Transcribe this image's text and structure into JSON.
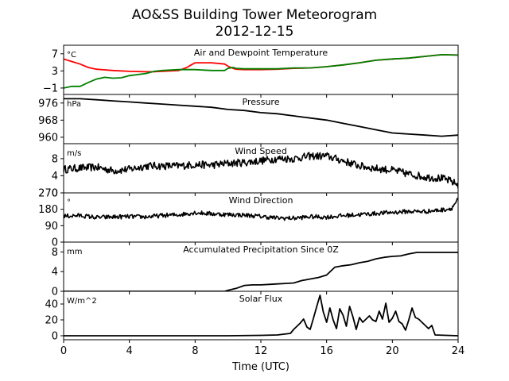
{
  "title": "AO&SS Building Tower Meteorogram",
  "subtitle": "2012-12-15",
  "xlabel": "Time (UTC)",
  "xticks": [
    0,
    4,
    8,
    12,
    16,
    20,
    24
  ],
  "xlim": [
    0,
    24
  ],
  "chart_data": [
    {
      "type": "line",
      "title": "Air and Dewpoint Temperature",
      "unit": "°C",
      "ylim": [
        -2.5,
        9
      ],
      "yticks": [
        -1,
        3,
        7
      ],
      "series": [
        {
          "color": "#ff0000",
          "x": [
            0,
            0.5,
            1,
            1.5,
            2,
            3,
            4,
            5,
            5.5,
            6,
            7,
            7.5,
            7.8,
            8,
            9,
            9.8,
            10,
            10.3,
            10.5,
            11,
            12,
            13,
            14,
            15,
            16,
            17,
            18,
            19,
            20,
            21,
            22,
            23,
            24
          ],
          "y": [
            5.8,
            5.2,
            4.6,
            3.8,
            3.4,
            3.1,
            2.9,
            2.8,
            2.8,
            2.9,
            3.1,
            3.8,
            4.5,
            4.9,
            4.9,
            4.6,
            4.1,
            3.6,
            3.4,
            3.3,
            3.3,
            3.4,
            3.6,
            3.7,
            4.0,
            4.4,
            4.9,
            5.5,
            5.8,
            6.0,
            6.4,
            6.8,
            6.7
          ]
        },
        {
          "color": "#008000",
          "x": [
            0,
            0.5,
            1,
            1.5,
            2,
            2.5,
            3,
            3.5,
            4,
            5,
            5.5,
            6,
            7,
            8,
            9,
            9.8,
            10,
            10.3,
            10.5,
            11,
            12,
            13,
            14,
            15,
            16,
            17,
            18,
            19,
            20,
            21,
            22,
            23,
            24
          ],
          "y": [
            -1.0,
            -0.6,
            -0.6,
            0.3,
            1.1,
            1.5,
            1.3,
            1.4,
            1.9,
            2.4,
            2.9,
            3.1,
            3.3,
            3.3,
            3.1,
            3.1,
            3.6,
            3.8,
            3.6,
            3.5,
            3.5,
            3.5,
            3.7,
            3.7,
            4.0,
            4.4,
            4.9,
            5.5,
            5.8,
            6.0,
            6.4,
            6.8,
            6.7
          ]
        }
      ]
    },
    {
      "type": "line",
      "title": "Pressure",
      "unit": "hPa",
      "ylim": [
        957,
        980
      ],
      "yticks": [
        960,
        968,
        976
      ],
      "series": [
        {
          "color": "#000000",
          "x": [
            0,
            1,
            2,
            3,
            4,
            5,
            6,
            7,
            8,
            9,
            10,
            11,
            12,
            13,
            14,
            15,
            16,
            17,
            18,
            19,
            20,
            21,
            22,
            23,
            24
          ],
          "y": [
            978,
            978,
            977.5,
            977,
            976.5,
            976,
            975.5,
            975,
            974.5,
            974,
            973,
            972.5,
            971.5,
            971,
            970,
            969,
            968,
            966.5,
            965,
            963.5,
            962,
            961.5,
            961,
            960.5,
            961
          ]
        }
      ]
    },
    {
      "type": "line",
      "title": "Wind Speed",
      "unit": "m/s",
      "ylim": [
        0,
        11.5
      ],
      "yticks": [
        0,
        4,
        8
      ],
      "noise": 0.9,
      "series": [
        {
          "color": "#000000",
          "x": [
            0,
            1,
            2,
            3,
            4,
            5,
            6,
            7,
            8,
            9,
            10,
            11,
            12,
            13,
            14,
            15,
            16,
            17,
            18,
            19,
            20,
            21,
            22,
            23,
            23.5,
            24
          ],
          "y": [
            5.5,
            5.8,
            6.0,
            5.2,
            5.5,
            6.3,
            6.3,
            6.3,
            6.6,
            6.5,
            6.9,
            7.1,
            7.5,
            8.0,
            8.0,
            8.6,
            8.6,
            7.5,
            6.3,
            5.7,
            5.3,
            4.4,
            3.7,
            3.4,
            2.8,
            1.9
          ]
        }
      ]
    },
    {
      "type": "line",
      "title": "Wind Direction",
      "unit": "°",
      "ylim": [
        0,
        270
      ],
      "yticks": [
        0,
        90,
        180,
        270
      ],
      "noise": 12,
      "series": [
        {
          "color": "#000000",
          "x": [
            0,
            1,
            2,
            3,
            4,
            5,
            6,
            7,
            8,
            9,
            10,
            11,
            12,
            13,
            14,
            15,
            16,
            17,
            18,
            19,
            20,
            21,
            22,
            23,
            23.6,
            24
          ],
          "y": [
            142,
            146,
            135,
            138,
            140,
            138,
            146,
            150,
            162,
            155,
            151,
            148,
            141,
            132,
            131,
            139,
            137,
            145,
            151,
            157,
            163,
            168,
            168,
            176,
            185,
            235
          ]
        }
      ]
    },
    {
      "type": "line",
      "title": "Accumulated Precipitation Since 0Z",
      "unit": "mm",
      "ylim": [
        0,
        10
      ],
      "yticks": [
        0,
        4,
        8
      ],
      "series": [
        {
          "color": "#000000",
          "x": [
            0,
            9.8,
            10,
            10.5,
            11,
            11.5,
            12,
            12.5,
            13,
            13.5,
            14,
            14.5,
            15,
            15.5,
            16,
            16.5,
            17,
            17.5,
            18,
            18.5,
            19,
            19.5,
            20,
            20.5,
            21,
            21.5,
            22,
            24
          ],
          "y": [
            0,
            0,
            0.2,
            0.6,
            1.2,
            1.3,
            1.3,
            1.4,
            1.5,
            1.6,
            1.7,
            2.2,
            2.5,
            2.8,
            3.3,
            4.9,
            5.2,
            5.4,
            5.8,
            6.1,
            6.6,
            6.9,
            7.1,
            7.2,
            7.6,
            7.9,
            7.9,
            7.9
          ]
        }
      ]
    },
    {
      "type": "line",
      "title": "Solar Flux",
      "unit": "W/m^2",
      "ylim": [
        -5,
        56
      ],
      "yticks": [
        0,
        20,
        40
      ],
      "series": [
        {
          "color": "#000000",
          "x": [
            0,
            10,
            12,
            13,
            13.8,
            14,
            14.4,
            14.6,
            14.8,
            15,
            15.2,
            15.4,
            15.6,
            15.8,
            16,
            16.2,
            16.4,
            16.6,
            16.8,
            17,
            17.2,
            17.4,
            17.6,
            17.8,
            18,
            18.2,
            18.4,
            18.6,
            18.8,
            19,
            19.2,
            19.4,
            19.6,
            19.8,
            20,
            20.2,
            20.4,
            20.6,
            20.8,
            21,
            21.2,
            21.4,
            21.6,
            21.8,
            22,
            22.2,
            22.4,
            22.6,
            24
          ],
          "y": [
            0,
            0,
            0.5,
            1,
            3,
            8,
            16,
            21,
            11,
            8,
            22,
            37,
            51,
            30,
            17,
            35,
            20,
            9,
            34,
            26,
            12,
            37,
            24,
            8,
            23,
            17,
            21,
            25,
            20,
            18,
            31,
            21,
            41,
            17,
            22,
            31,
            18,
            15,
            7,
            20,
            35,
            23,
            21,
            17,
            13,
            9,
            13,
            1,
            0
          ]
        }
      ]
    }
  ]
}
